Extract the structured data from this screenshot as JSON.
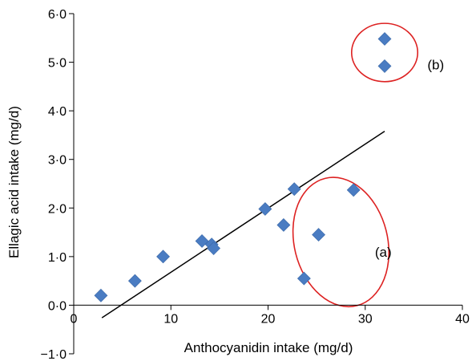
{
  "chart_data": {
    "type": "scatter",
    "xlabel": "Anthocyanidin intake (mg/d)",
    "ylabel": "Ellagic acid intake (mg/d)",
    "xlim": [
      0,
      40
    ],
    "ylim": [
      -1.0,
      6.0
    ],
    "x_ticks": [
      0,
      10,
      20,
      30,
      40
    ],
    "x_tick_labels": [
      "0",
      "10",
      "20",
      "30",
      "40"
    ],
    "y_ticks": [
      -1.0,
      0.0,
      1.0,
      2.0,
      3.0,
      4.0,
      5.0,
      6.0
    ],
    "y_tick_labels": [
      "−1·0",
      "0·0",
      "1·0",
      "2·0",
      "3·0",
      "4·0",
      "5·0",
      "6·0"
    ],
    "grid": false,
    "series": [
      {
        "color": "#4a7cc2",
        "marker": "diamond",
        "points": [
          {
            "x": 2.8,
            "y": 0.2
          },
          {
            "x": 6.3,
            "y": 0.5
          },
          {
            "x": 9.2,
            "y": 1.0
          },
          {
            "x": 13.2,
            "y": 1.32
          },
          {
            "x": 14.2,
            "y": 1.25
          },
          {
            "x": 14.4,
            "y": 1.17
          },
          {
            "x": 19.7,
            "y": 1.98
          },
          {
            "x": 21.6,
            "y": 1.65
          },
          {
            "x": 22.7,
            "y": 2.39
          },
          {
            "x": 23.7,
            "y": 0.55
          },
          {
            "x": 25.2,
            "y": 1.45
          },
          {
            "x": 28.8,
            "y": 2.37
          },
          {
            "x": 32.0,
            "y": 5.48
          },
          {
            "x": 32.0,
            "y": 4.92
          }
        ]
      }
    ],
    "trendline": {
      "x": [
        2.9,
        32.0
      ],
      "y": [
        -0.26,
        3.58
      ],
      "color": "#000000"
    },
    "annotations": [
      {
        "label": "(a)",
        "ellipse": {
          "cx": 27.5,
          "cy": 1.3,
          "rx": 4.8,
          "ry": 1.35
        },
        "label_at": {
          "x": 31.0,
          "y": 1.1
        },
        "color": "#dd2222"
      },
      {
        "label": "(b)",
        "ellipse": {
          "cx": 32.0,
          "cy": 5.2,
          "rx": 3.4,
          "ry": 0.6
        },
        "label_at": {
          "x": 36.4,
          "y": 4.95
        },
        "color": "#dd2222"
      }
    ]
  }
}
